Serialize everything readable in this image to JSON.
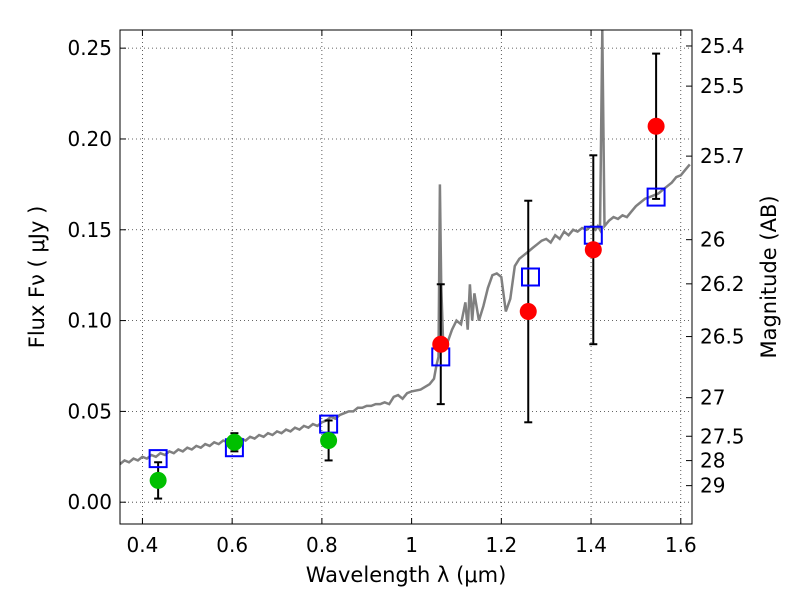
{
  "chart_data": {
    "type": "scatter",
    "title": "",
    "xlabel": "Wavelength  λ (μm)",
    "ylabel": "Flux  Fν  ( μJy )",
    "y2label": "Magnitude (AB)",
    "xlim": [
      0.35,
      1.625
    ],
    "ylim": [
      -0.012,
      0.26
    ],
    "grid": true,
    "grid_style": "dotted",
    "xticks": [
      {
        "value": 0.4,
        "label": "0.4"
      },
      {
        "value": 0.6,
        "label": "0.6"
      },
      {
        "value": 0.8,
        "label": "0.8"
      },
      {
        "value": 1.0,
        "label": "1"
      },
      {
        "value": 1.2,
        "label": "1.2"
      },
      {
        "value": 1.4,
        "label": "1.4"
      },
      {
        "value": 1.6,
        "label": "1.6"
      }
    ],
    "yticks": [
      {
        "value": 0.0,
        "label": "0.00"
      },
      {
        "value": 0.05,
        "label": "0.05"
      },
      {
        "value": 0.1,
        "label": "0.10"
      },
      {
        "value": 0.15,
        "label": "0.15"
      },
      {
        "value": 0.2,
        "label": "0.20"
      },
      {
        "value": 0.25,
        "label": "0.25"
      }
    ],
    "y2ticks": [
      {
        "mag": 25.4,
        "label": "25.4"
      },
      {
        "mag": 25.5,
        "label": "25.5"
      },
      {
        "mag": 25.7,
        "label": "25.7"
      },
      {
        "mag": 26.0,
        "label": "26"
      },
      {
        "mag": 26.2,
        "label": "26.2"
      },
      {
        "mag": 26.5,
        "label": "26.5"
      },
      {
        "mag": 27.0,
        "label": "27"
      },
      {
        "mag": 27.5,
        "label": "27.5"
      },
      {
        "mag": 28.0,
        "label": "28"
      },
      {
        "mag": 29.0,
        "label": "29"
      }
    ],
    "model_spectrum": {
      "color": "#808080",
      "points": [
        [
          0.35,
          0.021
        ],
        [
          0.36,
          0.023
        ],
        [
          0.37,
          0.022
        ],
        [
          0.38,
          0.024
        ],
        [
          0.39,
          0.023
        ],
        [
          0.4,
          0.025
        ],
        [
          0.41,
          0.024
        ],
        [
          0.42,
          0.026
        ],
        [
          0.43,
          0.025
        ],
        [
          0.44,
          0.027
        ],
        [
          0.45,
          0.026
        ],
        [
          0.46,
          0.028
        ],
        [
          0.47,
          0.027
        ],
        [
          0.48,
          0.029
        ],
        [
          0.49,
          0.028
        ],
        [
          0.5,
          0.03
        ],
        [
          0.51,
          0.029
        ],
        [
          0.52,
          0.031
        ],
        [
          0.53,
          0.03
        ],
        [
          0.54,
          0.032
        ],
        [
          0.55,
          0.031
        ],
        [
          0.56,
          0.033
        ],
        [
          0.57,
          0.032
        ],
        [
          0.58,
          0.034
        ],
        [
          0.59,
          0.033
        ],
        [
          0.6,
          0.034
        ],
        [
          0.61,
          0.033
        ],
        [
          0.62,
          0.035
        ],
        [
          0.63,
          0.034
        ],
        [
          0.64,
          0.036
        ],
        [
          0.65,
          0.035
        ],
        [
          0.66,
          0.037
        ],
        [
          0.67,
          0.036
        ],
        [
          0.68,
          0.038
        ],
        [
          0.69,
          0.037
        ],
        [
          0.7,
          0.039
        ],
        [
          0.71,
          0.038
        ],
        [
          0.72,
          0.04
        ],
        [
          0.73,
          0.039
        ],
        [
          0.74,
          0.041
        ],
        [
          0.75,
          0.04
        ],
        [
          0.76,
          0.042
        ],
        [
          0.77,
          0.041
        ],
        [
          0.78,
          0.043
        ],
        [
          0.79,
          0.042
        ],
        [
          0.8,
          0.044
        ],
        [
          0.81,
          0.045
        ],
        [
          0.82,
          0.047
        ],
        [
          0.83,
          0.046
        ],
        [
          0.84,
          0.048
        ],
        [
          0.85,
          0.049
        ],
        [
          0.86,
          0.05
        ],
        [
          0.87,
          0.05
        ],
        [
          0.88,
          0.052
        ],
        [
          0.89,
          0.052
        ],
        [
          0.9,
          0.053
        ],
        [
          0.91,
          0.053
        ],
        [
          0.92,
          0.054
        ],
        [
          0.93,
          0.054
        ],
        [
          0.94,
          0.055
        ],
        [
          0.95,
          0.054
        ],
        [
          0.96,
          0.058
        ],
        [
          0.97,
          0.059
        ],
        [
          0.98,
          0.057
        ],
        [
          0.99,
          0.06
        ],
        [
          1.0,
          0.061
        ],
        [
          1.02,
          0.062
        ],
        [
          1.04,
          0.065
        ],
        [
          1.05,
          0.068
        ],
        [
          1.055,
          0.075
        ],
        [
          1.06,
          0.08
        ],
        [
          1.063,
          0.175
        ],
        [
          1.066,
          0.12
        ],
        [
          1.07,
          0.09
        ],
        [
          1.08,
          0.088
        ],
        [
          1.09,
          0.095
        ],
        [
          1.1,
          0.1
        ],
        [
          1.11,
          0.098
        ],
        [
          1.12,
          0.11
        ],
        [
          1.125,
          0.095
        ],
        [
          1.13,
          0.12
        ],
        [
          1.135,
          0.1
        ],
        [
          1.14,
          0.115
        ],
        [
          1.15,
          0.1
        ],
        [
          1.16,
          0.108
        ],
        [
          1.17,
          0.118
        ],
        [
          1.18,
          0.125
        ],
        [
          1.19,
          0.126
        ],
        [
          1.2,
          0.124
        ],
        [
          1.21,
          0.105
        ],
        [
          1.22,
          0.112
        ],
        [
          1.23,
          0.13
        ],
        [
          1.24,
          0.134
        ],
        [
          1.25,
          0.136
        ],
        [
          1.26,
          0.138
        ],
        [
          1.27,
          0.14
        ],
        [
          1.28,
          0.142
        ],
        [
          1.29,
          0.144
        ],
        [
          1.3,
          0.145
        ],
        [
          1.31,
          0.143
        ],
        [
          1.32,
          0.147
        ],
        [
          1.33,
          0.145
        ],
        [
          1.34,
          0.149
        ],
        [
          1.35,
          0.147
        ],
        [
          1.36,
          0.15
        ],
        [
          1.37,
          0.149
        ],
        [
          1.38,
          0.151
        ],
        [
          1.39,
          0.15
        ],
        [
          1.4,
          0.152
        ],
        [
          1.41,
          0.15
        ],
        [
          1.415,
          0.152
        ],
        [
          1.42,
          0.15
        ],
        [
          1.425,
          0.26
        ],
        [
          1.43,
          0.152
        ],
        [
          1.44,
          0.155
        ],
        [
          1.45,
          0.157
        ],
        [
          1.46,
          0.156
        ],
        [
          1.47,
          0.158
        ],
        [
          1.48,
          0.157
        ],
        [
          1.49,
          0.16
        ],
        [
          1.5,
          0.163
        ],
        [
          1.51,
          0.165
        ],
        [
          1.52,
          0.167
        ],
        [
          1.53,
          0.168
        ],
        [
          1.54,
          0.169
        ],
        [
          1.55,
          0.17
        ],
        [
          1.56,
          0.172
        ],
        [
          1.57,
          0.174
        ],
        [
          1.58,
          0.176
        ],
        [
          1.59,
          0.179
        ],
        [
          1.6,
          0.18
        ],
        [
          1.61,
          0.183
        ],
        [
          1.62,
          0.186
        ]
      ]
    },
    "series": [
      {
        "marker": "square-open",
        "color": "#0000ff",
        "points": [
          [
            0.435,
            0.024
          ],
          [
            0.605,
            0.03
          ],
          [
            0.815,
            0.043
          ],
          [
            1.065,
            0.08
          ],
          [
            1.265,
            0.124
          ],
          [
            1.405,
            0.147
          ],
          [
            1.545,
            0.168
          ]
        ]
      },
      {
        "marker": "circle-filled",
        "color": "#00c000",
        "points": [
          [
            0.435,
            0.012,
            0.01,
            0.01
          ],
          [
            0.605,
            0.033,
            0.005,
            0.005
          ],
          [
            0.815,
            0.034,
            0.011,
            0.011
          ]
        ]
      },
      {
        "marker": "circle-filled",
        "color": "#ff0000",
        "points": [
          [
            1.065,
            0.087,
            0.033,
            0.033
          ],
          [
            1.26,
            0.105,
            0.061,
            0.061
          ],
          [
            1.405,
            0.139,
            0.052,
            0.052
          ],
          [
            1.545,
            0.207,
            0.04,
            0.04
          ]
        ]
      }
    ]
  }
}
